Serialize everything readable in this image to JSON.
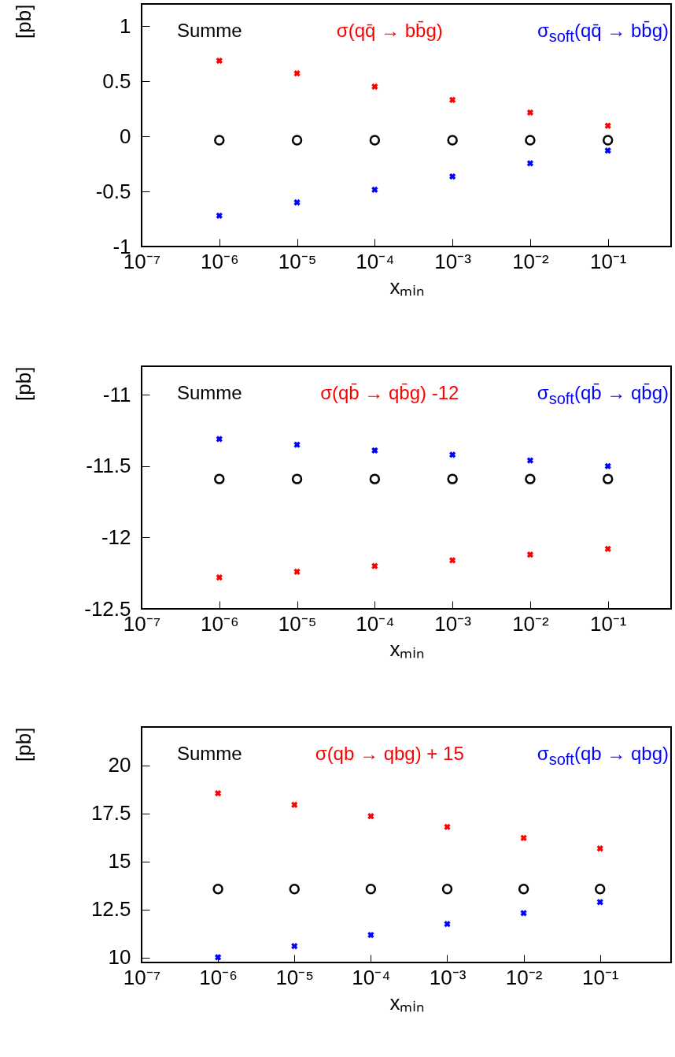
{
  "chart_data": [
    {
      "type": "scatter",
      "xlabel": "xₘᵢₙ",
      "ylabel": "[pb]",
      "log": "x",
      "legend": "top",
      "x": [
        1e-06,
        1e-05,
        0.0001,
        0.001,
        0.01,
        0.1
      ],
      "xlim": [
        1e-07,
        0.65
      ],
      "xticks": [
        {
          "value": 1e-07,
          "label": "10⁻⁷"
        },
        {
          "value": 1e-06,
          "label": "10⁻⁶"
        },
        {
          "value": 1e-05,
          "label": "10⁻⁵"
        },
        {
          "value": 0.0001,
          "label": "10⁻⁴"
        },
        {
          "value": 0.001,
          "label": "10⁻³"
        },
        {
          "value": 0.01,
          "label": "10⁻²"
        },
        {
          "value": 0.1,
          "label": "10⁻¹"
        }
      ],
      "ylim": [
        -1,
        1.2
      ],
      "yticks": [
        -1,
        -0.5,
        0,
        0.5,
        1
      ],
      "series": [
        {
          "name": "Summe",
          "color": "#000000",
          "marker": "circle",
          "values": [
            -0.035,
            -0.035,
            -0.035,
            -0.035,
            -0.035,
            -0.035
          ]
        },
        {
          "name": "σ(qq̄ → bb̄g)",
          "color": "#ff0000",
          "marker": "cross",
          "values": [
            0.685,
            0.57,
            0.45,
            0.33,
            0.215,
            0.095
          ]
        },
        {
          "name": "σ$_{soft}$(qq̄ → bb̄g)",
          "color": "#0000ff",
          "marker": "cross",
          "values": [
            -0.72,
            -0.6,
            -0.485,
            -0.365,
            -0.245,
            -0.13
          ]
        }
      ]
    },
    {
      "type": "scatter",
      "xlabel": "xₘᵢₙ",
      "ylabel": "[pb]",
      "log": "x",
      "legend": "top",
      "x": [
        1e-06,
        1e-05,
        0.0001,
        0.001,
        0.01,
        0.1
      ],
      "xlim": [
        1e-07,
        0.65
      ],
      "xticks": [
        {
          "value": 1e-07,
          "label": "10⁻⁷"
        },
        {
          "value": 1e-06,
          "label": "10⁻⁶"
        },
        {
          "value": 1e-05,
          "label": "10⁻⁵"
        },
        {
          "value": 0.0001,
          "label": "10⁻⁴"
        },
        {
          "value": 0.001,
          "label": "10⁻³"
        },
        {
          "value": 0.01,
          "label": "10⁻²"
        },
        {
          "value": 0.1,
          "label": "10⁻¹"
        }
      ],
      "ylim": [
        -12.5,
        -10.8
      ],
      "yticks": [
        -12.5,
        -12,
        -11.5,
        -11
      ],
      "series": [
        {
          "name": "Summe",
          "color": "#000000",
          "marker": "circle",
          "values": [
            -11.59,
            -11.59,
            -11.59,
            -11.59,
            -11.59,
            -11.59
          ]
        },
        {
          "name": "σ(qb̄ → qb̄g) -12",
          "color": "#ff0000",
          "marker": "cross",
          "values": [
            -12.28,
            -12.24,
            -12.2,
            -12.16,
            -12.12,
            -12.08
          ]
        },
        {
          "name": "σ$_{soft}$(qb̄ → qb̄g)",
          "color": "#0000ff",
          "marker": "cross",
          "values": [
            -11.31,
            -11.35,
            -11.39,
            -11.42,
            -11.46,
            -11.5
          ]
        }
      ]
    },
    {
      "type": "scatter",
      "xlabel": "xₘᵢₙ",
      "ylabel": "[pb]",
      "log": "x",
      "legend": "top",
      "x": [
        1e-06,
        1e-05,
        0.0001,
        0.001,
        0.01,
        0.1
      ],
      "xlim": [
        1e-07,
        0.85
      ],
      "xticks": [
        {
          "value": 1e-07,
          "label": "10⁻⁷"
        },
        {
          "value": 1e-06,
          "label": "10⁻⁶"
        },
        {
          "value": 1e-05,
          "label": "10⁻⁵"
        },
        {
          "value": 0.0001,
          "label": "10⁻⁴"
        },
        {
          "value": 0.001,
          "label": "10⁻³"
        },
        {
          "value": 0.01,
          "label": "10⁻²"
        },
        {
          "value": 0.1,
          "label": "10⁻¹"
        }
      ],
      "ylim": [
        9.75,
        22
      ],
      "yticks": [
        10,
        12.5,
        15,
        17.5,
        20
      ],
      "series": [
        {
          "name": "Summe",
          "color": "#000000",
          "marker": "circle",
          "values": [
            13.57,
            13.57,
            13.57,
            13.57,
            13.57,
            13.57
          ]
        },
        {
          "name": "σ(qb → qbg) + 15",
          "color": "#ff0000",
          "marker": "cross",
          "values": [
            18.55,
            17.95,
            17.36,
            16.8,
            16.23,
            15.68
          ]
        },
        {
          "name": "σ$_{soft}$(qb → qbg)",
          "color": "#0000ff",
          "marker": "cross",
          "values": [
            10.02,
            10.6,
            11.18,
            11.75,
            12.32,
            12.89
          ]
        }
      ]
    }
  ]
}
